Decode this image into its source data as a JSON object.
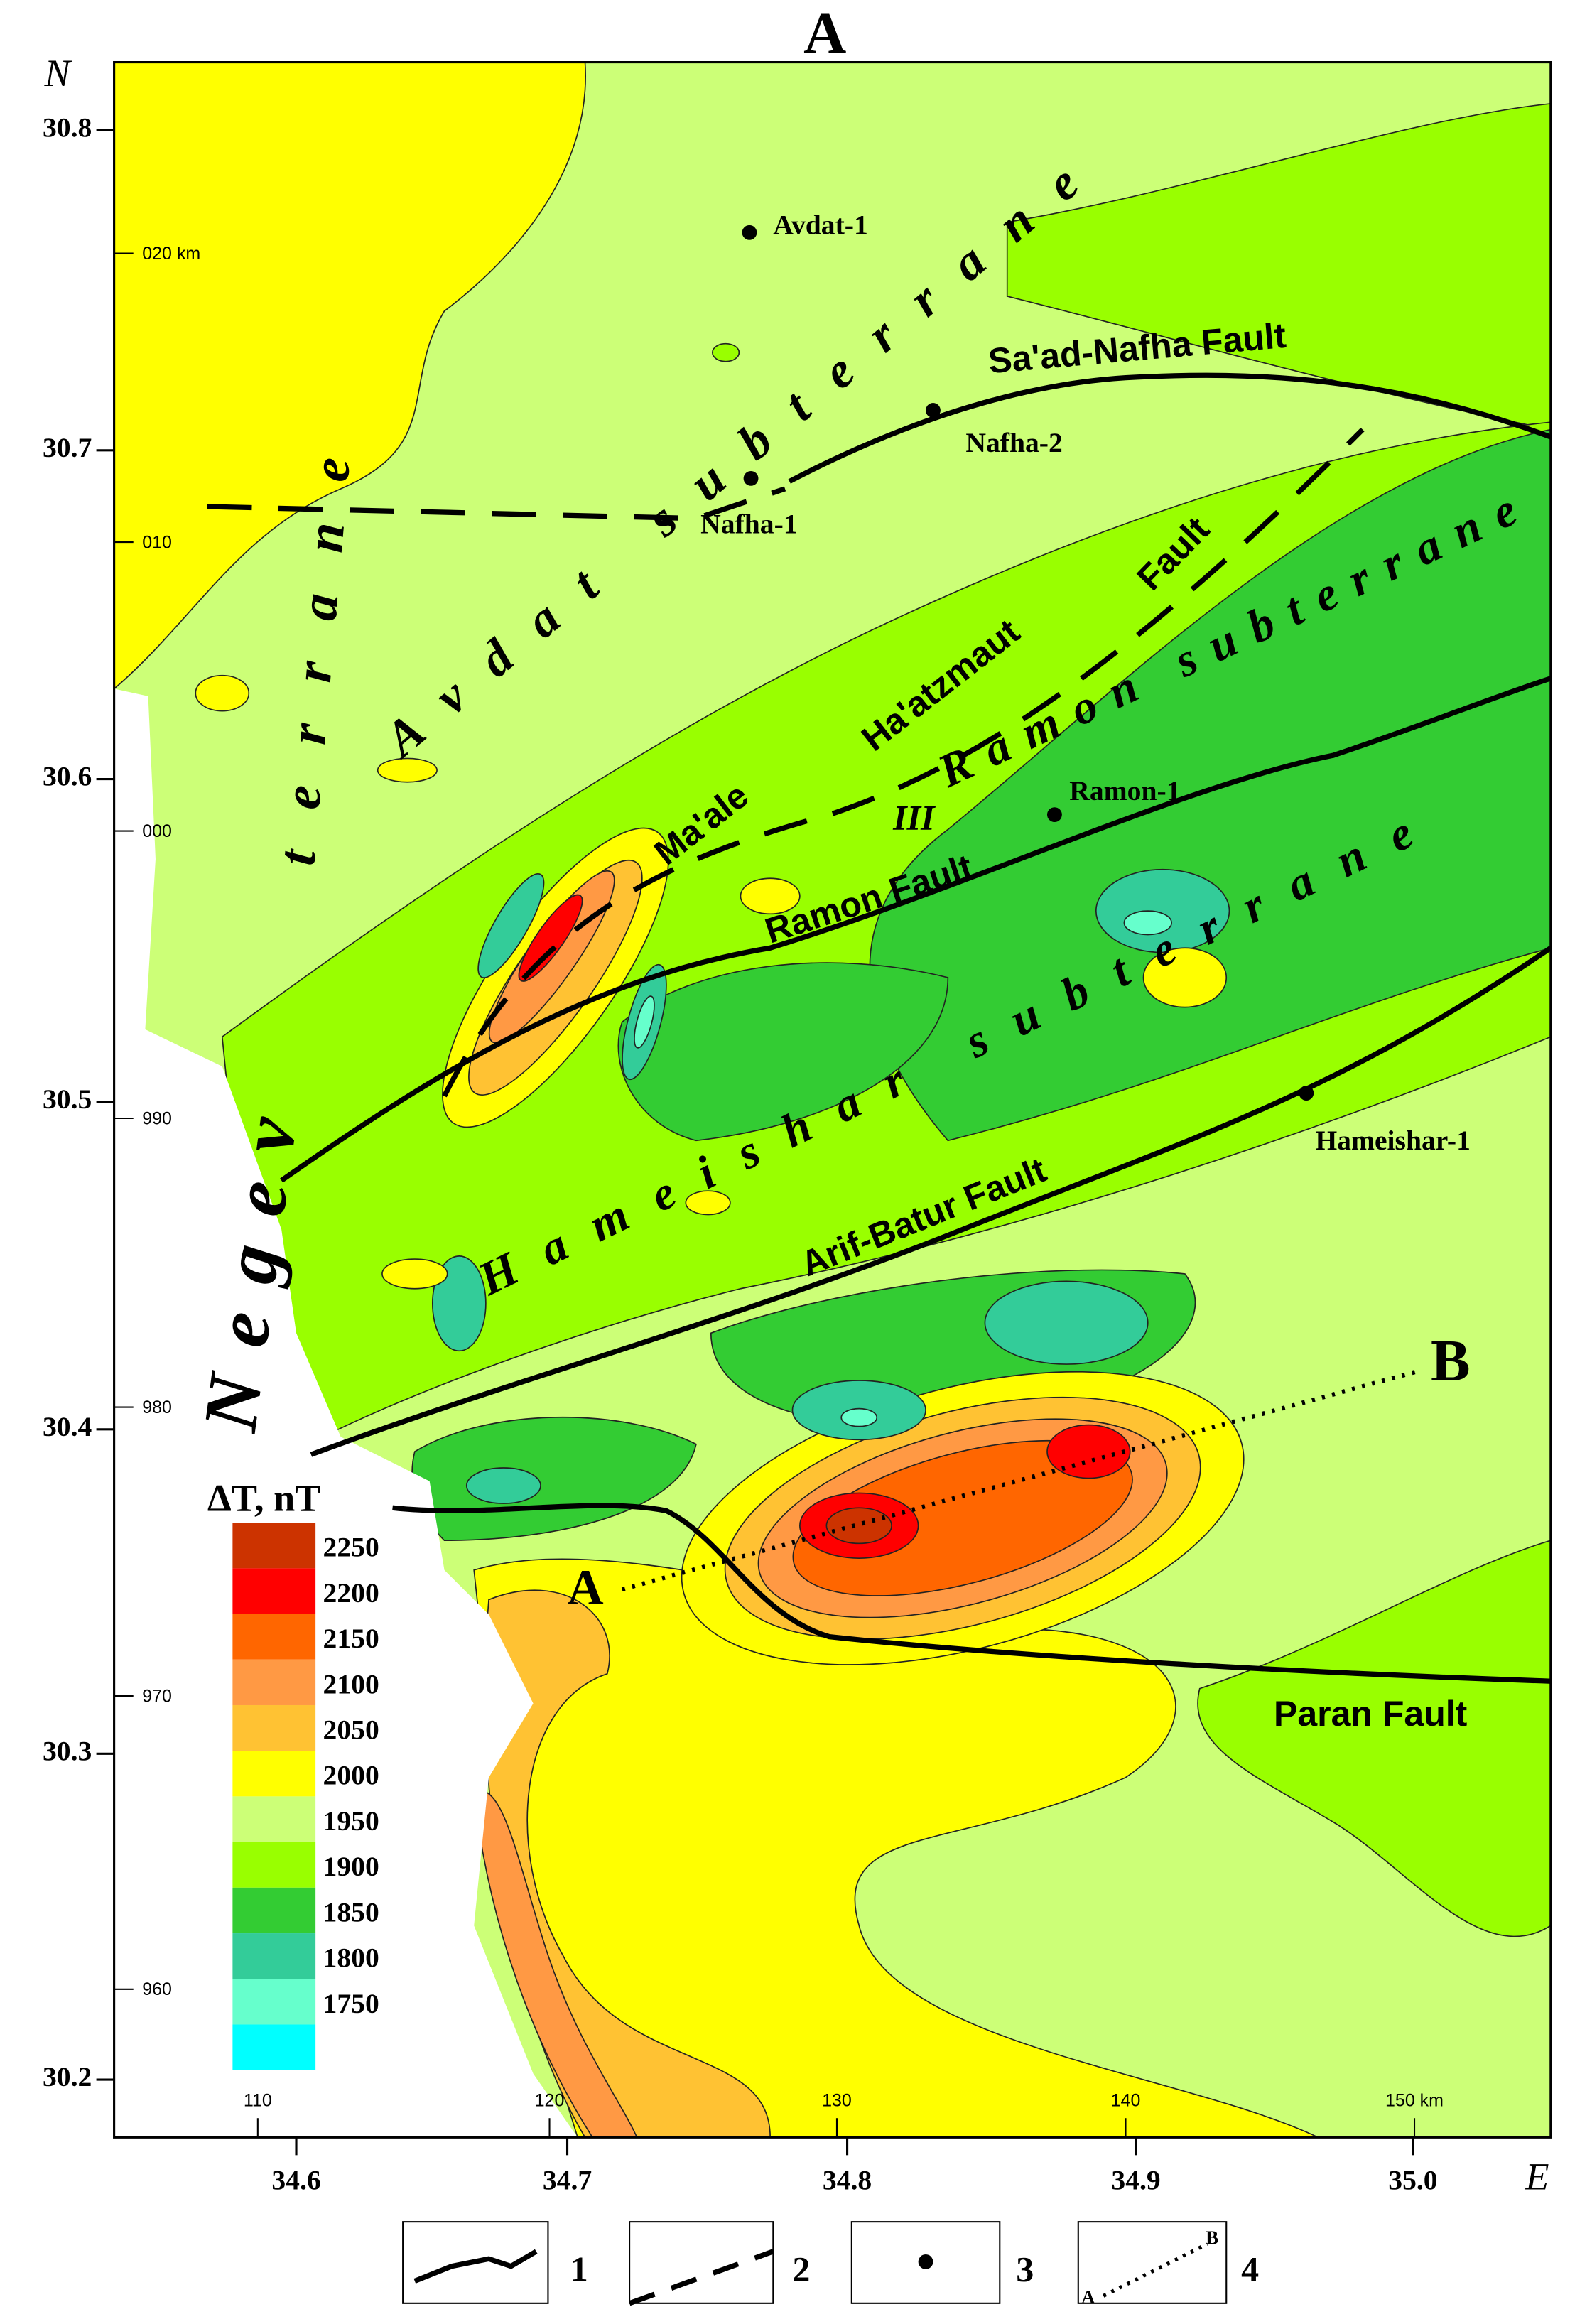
{
  "header": {
    "label": "A"
  },
  "axes": {
    "north": "N",
    "east": "E",
    "lat_ticks": [
      "30.8",
      "30.7",
      "30.6",
      "30.5",
      "30.4",
      "30.3",
      "30.2"
    ],
    "lon_ticks": [
      "34.6",
      "34.7",
      "34.8",
      "34.9",
      "35.0"
    ],
    "km_y": [
      "020 km",
      "010",
      "000",
      "990",
      "980",
      "970",
      "960"
    ],
    "km_x": [
      "110",
      "120",
      "130",
      "140",
      "150 km"
    ]
  },
  "terranes": {
    "negev": "Negev",
    "terrane": "terrane",
    "avdat": "Avdat subterrane",
    "ramon": "Ramon subterrane",
    "hameishar": "Hameishar subterrane",
    "zone": "III"
  },
  "faults": {
    "saad_nafha": "Sa'ad-Nafha  Fault",
    "haatzmaut": "Ha'atzmaut",
    "haatzmaut_fault": "Fault",
    "maale": "Ma'ale",
    "ramon": "Ramon  Fault",
    "arif_batur": "Arif-Batur  Fault",
    "paran": "Paran  Fault"
  },
  "wells": [
    "Avdat-1",
    "Nafha-2",
    "Nafha-1",
    "Ramon-1",
    "Hameishar-1"
  ],
  "profile": {
    "start": "A",
    "end": "B"
  },
  "legend": {
    "title": "ΔT, nT",
    "values": [
      "2250",
      "2200",
      "2150",
      "2100",
      "2050",
      "2000",
      "1950",
      "1900",
      "1850",
      "1800",
      "1750"
    ],
    "colors": [
      "#cc3300",
      "#ff0000",
      "#ff6600",
      "#ff9944",
      "#ffc233",
      "#ffff00",
      "#ccff77",
      "#99ff00",
      "#33cc33",
      "#33cc99",
      "#66ffcc",
      "#00ffff"
    ]
  },
  "key": [
    "1",
    "2",
    "3",
    "4"
  ],
  "key_profile": {
    "start": "A",
    "end": "B"
  }
}
